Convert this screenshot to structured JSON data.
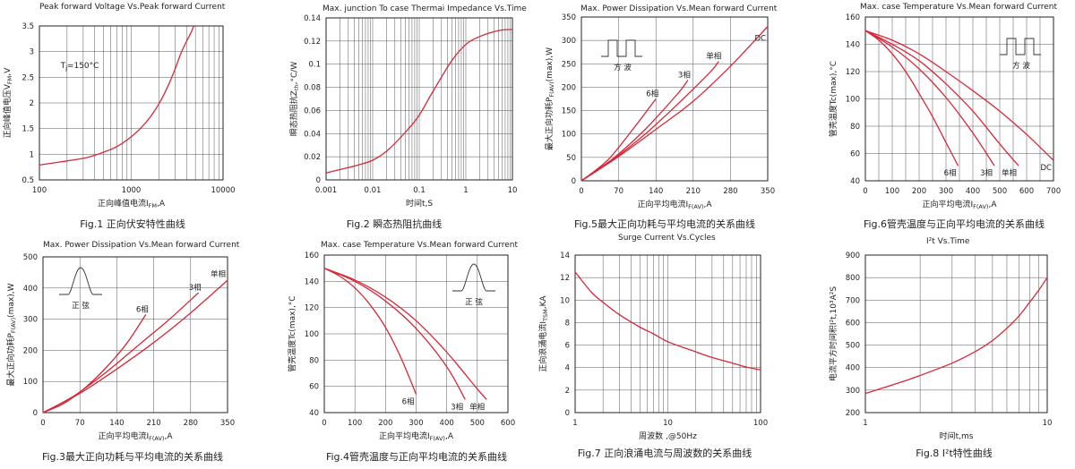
{
  "chart_data": [
    {
      "id": "fig1",
      "type": "line",
      "title": "Peak forward Voltage Vs.Peak forward Current",
      "caption": "Fig.1 正向伏安特性曲线",
      "xlabel": "正向峰值电流I",
      "xlabel_sub": "FM",
      "xlabel_unit": ",A",
      "ylabel": "正向峰值电压V",
      "ylabel_sub": "FM",
      "ylabel_unit": ",V",
      "xscale": "log",
      "xlim": [
        100,
        10000
      ],
      "ylim": [
        0.5,
        3.5
      ],
      "xticks": [
        100,
        1000,
        10000
      ],
      "yticks": [
        0.5,
        1,
        1.5,
        2,
        2.5,
        3,
        3.5
      ],
      "grid": "log-minor",
      "annotation": {
        "text": "T",
        "sub": "j",
        "rest": "=150°C",
        "x": 170,
        "y": 2.68
      },
      "series": [
        {
          "x": [
            100,
            200,
            300,
            400,
            500,
            700,
            1000,
            1300,
            1600,
            2000,
            2500,
            3000,
            3500,
            4000,
            4500,
            4800
          ],
          "y": [
            0.79,
            0.87,
            0.92,
            0.98,
            1.04,
            1.15,
            1.34,
            1.53,
            1.72,
            1.98,
            2.32,
            2.66,
            2.98,
            3.2,
            3.38,
            3.5
          ]
        }
      ]
    },
    {
      "id": "fig2",
      "type": "line",
      "title": "Max. junction To case Thermai Impedance Vs.Time",
      "caption": "Fig.2  瞬态热阻抗曲线",
      "xlabel": "时间t,S",
      "ylabel": "瞬态热阻抗Z",
      "ylabel_sub": "th",
      "ylabel_unit": ",°C/W",
      "xscale": "log",
      "xlim": [
        0.001,
        10
      ],
      "ylim": [
        0,
        0.14
      ],
      "xticks": [
        0.001,
        0.01,
        0.1,
        1,
        10
      ],
      "xtick_labels": [
        "0.001",
        "0.01",
        "0.1",
        "1",
        "10"
      ],
      "yticks": [
        0,
        0.02,
        0.04,
        0.06,
        0.08,
        0.1,
        0.12,
        0.14
      ],
      "ytick_labels": [
        "0",
        "0.02",
        "0.04",
        "0.06",
        "0.08",
        "0.1",
        "0.12",
        "0.14"
      ],
      "grid": "log-minor",
      "series": [
        {
          "x": [
            0.001,
            0.002,
            0.005,
            0.01,
            0.02,
            0.05,
            0.1,
            0.2,
            0.5,
            1,
            2,
            5,
            10
          ],
          "y": [
            0.006,
            0.009,
            0.013,
            0.017,
            0.025,
            0.041,
            0.056,
            0.077,
            0.103,
            0.117,
            0.124,
            0.129,
            0.13
          ]
        }
      ]
    },
    {
      "id": "fig5",
      "type": "line",
      "title": "Max. Power Dissipation Vs.Mean forward Current",
      "caption": "Fig.5最大正向功耗与平均电流的关系曲线",
      "xlabel": "正向平均电流I",
      "xlabel_sub": "F(AV)",
      "xlabel_unit": ",A",
      "ylabel": "最大正向功耗P",
      "ylabel_sub": "F(AV)",
      "ylabel_unit": "(max),W",
      "xlim": [
        0,
        350
      ],
      "ylim": [
        0,
        350
      ],
      "xticks": [
        0,
        70,
        140,
        210,
        280,
        350
      ],
      "yticks": [
        0,
        50,
        100,
        150,
        200,
        250,
        300,
        350
      ],
      "grid": "major",
      "inset": {
        "kind": "square",
        "label": "方  波"
      },
      "series": [
        {
          "name": "6相",
          "x": [
            0,
            50,
            100,
            140
          ],
          "y": [
            0,
            45,
            115,
            175
          ]
        },
        {
          "name": "3相",
          "x": [
            0,
            60,
            120,
            180,
            200
          ],
          "y": [
            0,
            48,
            110,
            185,
            215
          ]
        },
        {
          "name": "单相",
          "x": [
            0,
            60,
            120,
            180,
            240,
            258
          ],
          "y": [
            0,
            46,
            100,
            163,
            230,
            255
          ]
        },
        {
          "name": "DC",
          "x": [
            0,
            70,
            140,
            210,
            280,
            350
          ],
          "y": [
            0,
            52,
            110,
            170,
            245,
            330
          ]
        }
      ]
    },
    {
      "id": "fig6",
      "type": "line",
      "title": "Max. case Temperature Vs.Mean forward Current",
      "caption": "Fig.6管壳温度与正向平均电流的关系曲线",
      "xlabel": "正向平均电流I",
      "xlabel_sub": "F(AV)",
      "xlabel_unit": ",A",
      "ylabel": "管壳温度Tc(max),°C",
      "xlim": [
        0,
        700
      ],
      "ylim": [
        40,
        160
      ],
      "xticks": [
        0,
        100,
        200,
        300,
        400,
        500,
        600,
        700
      ],
      "yticks": [
        40,
        60,
        80,
        100,
        120,
        140,
        160
      ],
      "grid": "major",
      "inset": {
        "kind": "square",
        "label": "方  波"
      },
      "series": [
        {
          "name": "6相",
          "x": [
            0,
            50,
            100,
            150,
            200,
            250,
            300,
            345
          ],
          "y": [
            150,
            143,
            133,
            120,
            104,
            87,
            68,
            51
          ]
        },
        {
          "name": "3相",
          "x": [
            0,
            100,
            200,
            300,
            400,
            480
          ],
          "y": [
            150,
            138,
            122,
            101,
            75,
            51
          ]
        },
        {
          "name": "单相",
          "x": [
            0,
            100,
            200,
            300,
            400,
            500,
            570
          ],
          "y": [
            150,
            140,
            128,
            111,
            91,
            67,
            51
          ]
        },
        {
          "name": "DC",
          "x": [
            0,
            100,
            200,
            300,
            400,
            500,
            600,
            700
          ],
          "y": [
            150,
            143,
            133,
            120,
            106,
            91,
            74,
            55
          ]
        }
      ]
    },
    {
      "id": "fig3",
      "type": "line",
      "title": "Max. Power Dissipation Vs.Mean forward Current",
      "caption": "Fig.3最大正向功耗与平均电流的关系曲线",
      "xlabel": "正向平均电流I",
      "xlabel_sub": "F(AV)",
      "xlabel_unit": ",A",
      "ylabel": "最大正向功耗P",
      "ylabel_sub": "F(AV)",
      "ylabel_unit": "(max),W",
      "xlim": [
        0,
        350
      ],
      "ylim": [
        0,
        500
      ],
      "xticks": [
        0,
        70,
        140,
        210,
        280,
        350
      ],
      "yticks": [
        0,
        100,
        200,
        300,
        400,
        500
      ],
      "grid": "major",
      "inset": {
        "kind": "sine",
        "label": "正  弦"
      },
      "series": [
        {
          "name": "6相",
          "x": [
            0,
            40,
            80,
            120,
            160,
            195
          ],
          "y": [
            0,
            30,
            80,
            145,
            225,
            315
          ]
        },
        {
          "name": "3相",
          "x": [
            0,
            60,
            120,
            180,
            240,
            295
          ],
          "y": [
            0,
            55,
            130,
            215,
            300,
            385
          ]
        },
        {
          "name": "单相",
          "x": [
            0,
            70,
            140,
            210,
            280,
            350
          ],
          "y": [
            0,
            62,
            140,
            225,
            320,
            425
          ]
        }
      ]
    },
    {
      "id": "fig4",
      "type": "line",
      "title": "Max. case Temperature Vs.Mean forward Current",
      "caption": "Fig.4管壳温度与正向平均电流的关系曲线",
      "xlabel": "正向平均电流I",
      "xlabel_sub": "F(AV)",
      "xlabel_unit": ",A",
      "ylabel": "管壳温度Tc(max),°C",
      "xlim": [
        0,
        600
      ],
      "ylim": [
        40,
        160
      ],
      "xticks": [
        0,
        100,
        200,
        300,
        400,
        500,
        600
      ],
      "yticks": [
        40,
        60,
        80,
        100,
        120,
        140,
        160
      ],
      "grid": "major",
      "inset": {
        "kind": "sine",
        "label": "正  弦"
      },
      "series": [
        {
          "name": "6相",
          "x": [
            0,
            50,
            100,
            150,
            200,
            250,
            300
          ],
          "y": [
            150,
            144,
            135,
            122,
            105,
            82,
            54
          ]
        },
        {
          "name": "3相",
          "x": [
            0,
            100,
            200,
            300,
            400,
            460
          ],
          "y": [
            150,
            140,
            125,
            104,
            75,
            50
          ]
        },
        {
          "name": "单相",
          "x": [
            0,
            100,
            200,
            300,
            400,
            500,
            530
          ],
          "y": [
            150,
            141,
            128,
            110,
            86,
            58,
            50
          ]
        }
      ]
    },
    {
      "id": "fig7",
      "type": "line",
      "title": "Surge Current Vs.Cycles",
      "caption": "Fig.7 正向浪涌电流与周波数的关系曲线",
      "xlabel": "周波数 ,@50Hz",
      "ylabel": "正向浪涌电流I",
      "ylabel_sub": "TSM",
      "ylabel_unit": ",KA",
      "xscale": "log",
      "xlim": [
        1,
        100
      ],
      "ylim": [
        0,
        14
      ],
      "xticks": [
        1,
        10,
        100
      ],
      "yticks": [
        0,
        2,
        4,
        6,
        8,
        10,
        12,
        14
      ],
      "grid": "log-minor",
      "series": [
        {
          "x": [
            1,
            1.5,
            2,
            3,
            5,
            7,
            10,
            20,
            30,
            50,
            70,
            100
          ],
          "y": [
            12.5,
            10.7,
            9.8,
            8.7,
            7.6,
            7,
            6.3,
            5.4,
            4.9,
            4.4,
            4.05,
            3.8
          ]
        }
      ]
    },
    {
      "id": "fig8",
      "type": "line",
      "title": "I²t Vs.Time",
      "caption": "Fig.8 I²t特性曲线",
      "xlabel": "时间t,ms",
      "ylabel": "电流平方时间积I²t,10³A²S",
      "xscale": "log",
      "xlim": [
        1,
        10
      ],
      "ylim": [
        200,
        900
      ],
      "xticks": [
        1,
        10
      ],
      "yticks": [
        200,
        300,
        400,
        500,
        600,
        700,
        800,
        900
      ],
      "grid": "log-minor",
      "series": [
        {
          "x": [
            1,
            1.5,
            2,
            3,
            4,
            5,
            6,
            7,
            8,
            9,
            10
          ],
          "y": [
            285,
            330,
            365,
            420,
            470,
            520,
            575,
            630,
            690,
            745,
            800
          ]
        }
      ]
    }
  ]
}
